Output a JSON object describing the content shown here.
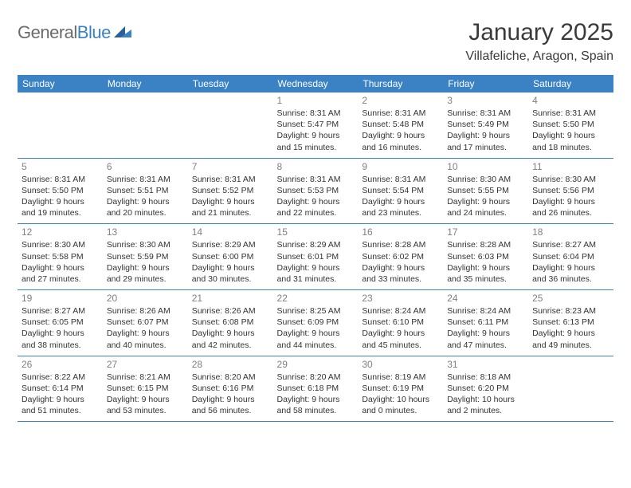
{
  "logo": {
    "general": "General",
    "blue": "Blue"
  },
  "title": "January 2025",
  "location": "Villafeliche, Aragon, Spain",
  "header_color": "#3b82c4",
  "border_color": "#3b82c4",
  "day_names": [
    "Sunday",
    "Monday",
    "Tuesday",
    "Wednesday",
    "Thursday",
    "Friday",
    "Saturday"
  ],
  "weeks": [
    [
      null,
      null,
      null,
      {
        "n": "1",
        "sunrise": "8:31 AM",
        "sunset": "5:47 PM",
        "daylight": "9 hours and 15 minutes."
      },
      {
        "n": "2",
        "sunrise": "8:31 AM",
        "sunset": "5:48 PM",
        "daylight": "9 hours and 16 minutes."
      },
      {
        "n": "3",
        "sunrise": "8:31 AM",
        "sunset": "5:49 PM",
        "daylight": "9 hours and 17 minutes."
      },
      {
        "n": "4",
        "sunrise": "8:31 AM",
        "sunset": "5:50 PM",
        "daylight": "9 hours and 18 minutes."
      }
    ],
    [
      {
        "n": "5",
        "sunrise": "8:31 AM",
        "sunset": "5:50 PM",
        "daylight": "9 hours and 19 minutes."
      },
      {
        "n": "6",
        "sunrise": "8:31 AM",
        "sunset": "5:51 PM",
        "daylight": "9 hours and 20 minutes."
      },
      {
        "n": "7",
        "sunrise": "8:31 AM",
        "sunset": "5:52 PM",
        "daylight": "9 hours and 21 minutes."
      },
      {
        "n": "8",
        "sunrise": "8:31 AM",
        "sunset": "5:53 PM",
        "daylight": "9 hours and 22 minutes."
      },
      {
        "n": "9",
        "sunrise": "8:31 AM",
        "sunset": "5:54 PM",
        "daylight": "9 hours and 23 minutes."
      },
      {
        "n": "10",
        "sunrise": "8:30 AM",
        "sunset": "5:55 PM",
        "daylight": "9 hours and 24 minutes."
      },
      {
        "n": "11",
        "sunrise": "8:30 AM",
        "sunset": "5:56 PM",
        "daylight": "9 hours and 26 minutes."
      }
    ],
    [
      {
        "n": "12",
        "sunrise": "8:30 AM",
        "sunset": "5:58 PM",
        "daylight": "9 hours and 27 minutes."
      },
      {
        "n": "13",
        "sunrise": "8:30 AM",
        "sunset": "5:59 PM",
        "daylight": "9 hours and 29 minutes."
      },
      {
        "n": "14",
        "sunrise": "8:29 AM",
        "sunset": "6:00 PM",
        "daylight": "9 hours and 30 minutes."
      },
      {
        "n": "15",
        "sunrise": "8:29 AM",
        "sunset": "6:01 PM",
        "daylight": "9 hours and 31 minutes."
      },
      {
        "n": "16",
        "sunrise": "8:28 AM",
        "sunset": "6:02 PM",
        "daylight": "9 hours and 33 minutes."
      },
      {
        "n": "17",
        "sunrise": "8:28 AM",
        "sunset": "6:03 PM",
        "daylight": "9 hours and 35 minutes."
      },
      {
        "n": "18",
        "sunrise": "8:27 AM",
        "sunset": "6:04 PM",
        "daylight": "9 hours and 36 minutes."
      }
    ],
    [
      {
        "n": "19",
        "sunrise": "8:27 AM",
        "sunset": "6:05 PM",
        "daylight": "9 hours and 38 minutes."
      },
      {
        "n": "20",
        "sunrise": "8:26 AM",
        "sunset": "6:07 PM",
        "daylight": "9 hours and 40 minutes."
      },
      {
        "n": "21",
        "sunrise": "8:26 AM",
        "sunset": "6:08 PM",
        "daylight": "9 hours and 42 minutes."
      },
      {
        "n": "22",
        "sunrise": "8:25 AM",
        "sunset": "6:09 PM",
        "daylight": "9 hours and 44 minutes."
      },
      {
        "n": "23",
        "sunrise": "8:24 AM",
        "sunset": "6:10 PM",
        "daylight": "9 hours and 45 minutes."
      },
      {
        "n": "24",
        "sunrise": "8:24 AM",
        "sunset": "6:11 PM",
        "daylight": "9 hours and 47 minutes."
      },
      {
        "n": "25",
        "sunrise": "8:23 AM",
        "sunset": "6:13 PM",
        "daylight": "9 hours and 49 minutes."
      }
    ],
    [
      {
        "n": "26",
        "sunrise": "8:22 AM",
        "sunset": "6:14 PM",
        "daylight": "9 hours and 51 minutes."
      },
      {
        "n": "27",
        "sunrise": "8:21 AM",
        "sunset": "6:15 PM",
        "daylight": "9 hours and 53 minutes."
      },
      {
        "n": "28",
        "sunrise": "8:20 AM",
        "sunset": "6:16 PM",
        "daylight": "9 hours and 56 minutes."
      },
      {
        "n": "29",
        "sunrise": "8:20 AM",
        "sunset": "6:18 PM",
        "daylight": "9 hours and 58 minutes."
      },
      {
        "n": "30",
        "sunrise": "8:19 AM",
        "sunset": "6:19 PM",
        "daylight": "10 hours and 0 minutes."
      },
      {
        "n": "31",
        "sunrise": "8:18 AM",
        "sunset": "6:20 PM",
        "daylight": "10 hours and 2 minutes."
      },
      null
    ]
  ],
  "labels": {
    "sunrise": "Sunrise: ",
    "sunset": "Sunset: ",
    "daylight": "Daylight: "
  }
}
